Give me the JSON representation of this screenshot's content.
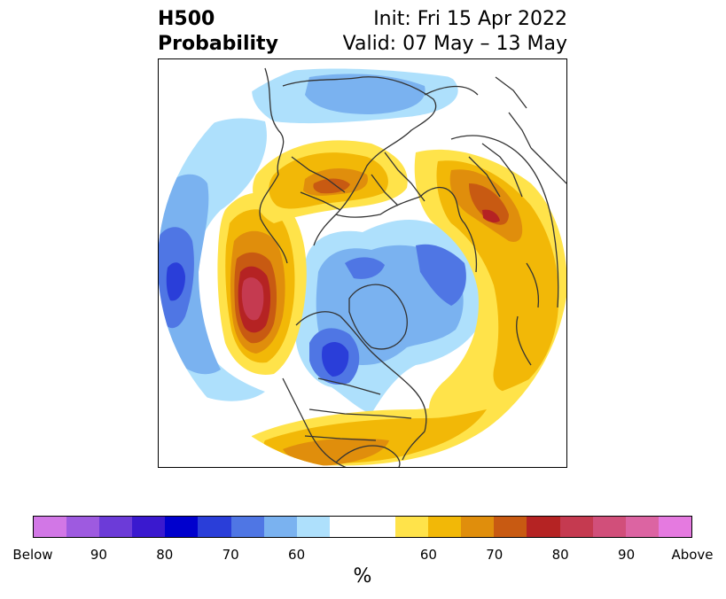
{
  "title": {
    "left_line1": "H500",
    "left_line2": "Probability",
    "right_line1": "Init: Fri 15 Apr 2022",
    "right_line2": "Valid: 07 May – 13 May"
  },
  "colorbar": {
    "colors": [
      "#d277e6",
      "#9e5ae0",
      "#6c3bd8",
      "#3a19cf",
      "#0000cd",
      "#2a3ed9",
      "#4f76e4",
      "#7ab2f0",
      "#aee0fc",
      "#ffffff",
      "#ffffff",
      "#ffe34a",
      "#f2b807",
      "#e08e0c",
      "#c85a12",
      "#b52323",
      "#c53a50",
      "#d14f7a",
      "#dc64a2",
      "#e57ae0"
    ],
    "tick_labels": [
      "Below",
      "90",
      "80",
      "70",
      "60",
      "60",
      "70",
      "80",
      "90",
      "Above"
    ],
    "unit_label": "%"
  },
  "map": {
    "projection": "north-polar-stereographic",
    "below_colors": {
      "60": "#aee0fc",
      "65": "#7ab2f0",
      "70": "#4f76e4",
      "75": "#2a3ed9"
    },
    "above_colors": {
      "60": "#ffe34a",
      "65": "#f2b807",
      "70": "#e08e0c",
      "75": "#c85a12",
      "80": "#b52323",
      "85": "#c53a50"
    },
    "coastline_color": "#333333"
  }
}
